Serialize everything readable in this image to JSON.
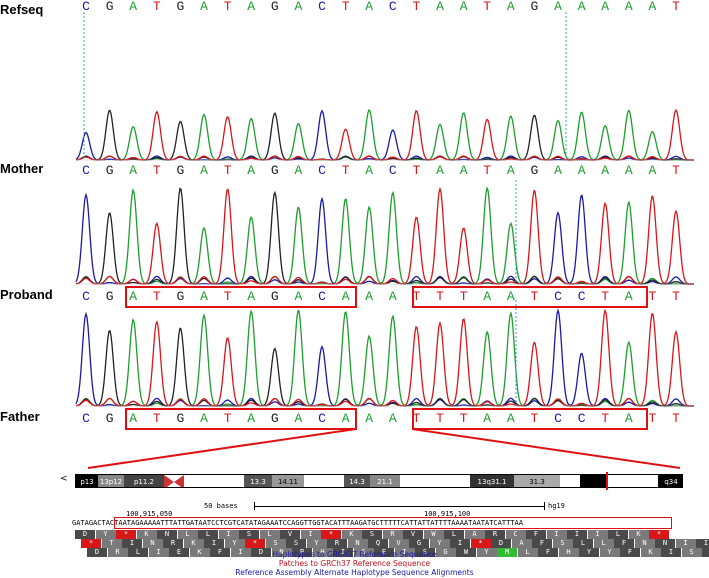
{
  "tracks": [
    {
      "label": "Refseq",
      "sequence": "CGATGATAGACTACTAATAGAAAAAT"
    },
    {
      "label": "Mother",
      "sequence": "CGATGATAGACTACTAATAGAAAAAT"
    },
    {
      "label": "Proband",
      "sequence": "CGATGATAGACAAATTTAATCCTATT"
    },
    {
      "label": "Father",
      "sequence": "CGATGATAGACAAATTTAATCCTATT"
    }
  ],
  "base_colors": {
    "A": "#1d9e2d",
    "C": "#1a1aa8",
    "G": "#222222",
    "T": "#d8161a"
  },
  "highlight_color": "#e01010",
  "browser": {
    "left_arrow": "<",
    "bands": [
      "p13",
      "13p12",
      "p11.2",
      "13.3",
      "14.11",
      "14.3",
      "21.1",
      "13q31.1",
      "31.3",
      "q34"
    ],
    "scale_label": "50 bases",
    "assembly": "hg19",
    "coord_left": "100,915,050",
    "coord_right": "100,915,100",
    "dna": "GATAGACTACTAATAGAAAAATTTATTGATAATCCTCGTCATATAGAAATCCAGGTTGGTACATTTAAGATGCTTTTTCATTATTATTTTAAAATAATATCATTTAA",
    "aa_rows": [
      "D Y * K N L L I S L V I * K S R V W L A R C F I I I L K *",
      "* T I N R K I Y * S S Y R N Q V G Y I * D A F S L L F N N I I",
      "D R L I E K F I D N P H I S E I S G W Y M L F H Y Y F K I S F N"
    ],
    "track_labels": [
      "Haplotypes to GRCh37 Reference Sequence",
      "Patches to GRCh37 Reference Sequence",
      "Reference Assembly Alternate Haplotype Sequence Alignments"
    ]
  }
}
